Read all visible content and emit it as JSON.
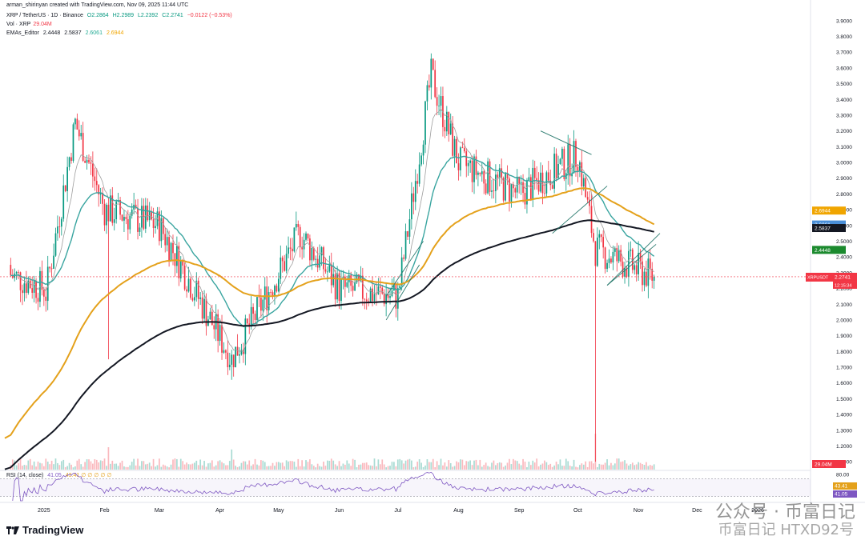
{
  "header": {
    "byline": "arman_shirinyan created with TradingView.com, Nov 09, 2025 11:44 UTC",
    "symbol": "XRP / TetherUS · 1D · Binance",
    "o": "O2.2864",
    "h": "H2.2989",
    "l": "L2.2392",
    "c": "C2.2741",
    "chg": "−0.0122 (−0.53%)",
    "vol_label": "Vol · XRP",
    "vol_value": "29.04M",
    "ema_label": "EMAs_Editor",
    "ema1": "2.4448",
    "ema2": "2.5837",
    "ema3": "2.6061",
    "ema4": "2.6944",
    "rsi_label": "RSI (14, close)",
    "rsi_value": "41.05",
    "rsi_extra": "43.41 ∅ ∅ ∅ ∅ ∅"
  },
  "chart_data": {
    "type": "candlestick",
    "symbol": "XRPUSDT",
    "interval": "1D",
    "y_ticks": [
      "3.9000",
      "3.8000",
      "3.7000",
      "3.6000",
      "3.5000",
      "3.4000",
      "3.3000",
      "3.2000",
      "3.1000",
      "3.0000",
      "2.9000",
      "2.8000",
      "2.7000",
      "2.6000",
      "2.5000",
      "2.4000",
      "2.3000",
      "2.2000",
      "2.1000",
      "2.0000",
      "1.9000",
      "1.8000",
      "1.7000",
      "1.6000",
      "1.5000",
      "1.4000",
      "1.3000",
      "1.2000",
      "1.1000"
    ],
    "ylim": [
      1.05,
      3.95
    ],
    "x_labels": [
      "2025",
      "Feb",
      "Mar",
      "Apr",
      "May",
      "Jun",
      "Jul",
      "Aug",
      "Sep",
      "Oct",
      "Nov",
      "Dec",
      "2026"
    ],
    "last_price": 2.2741,
    "price_badge": "XRPUSDT",
    "price_badge_value": "2.2741",
    "countdown": "12:15:34",
    "ema_badges": [
      {
        "value": "2.6944",
        "color": "#f0a500"
      },
      {
        "value": "2.6061",
        "color": "#4a8fd8"
      },
      {
        "value": "2.5837",
        "color": "#131722"
      },
      {
        "value": "2.4448",
        "color": "#1b8a2e"
      }
    ],
    "volume_badge": "29.04M",
    "rsi_ticks": [
      "80.00",
      "40.00"
    ],
    "rsi_badges": [
      "43.41",
      "41.05"
    ],
    "monthly_closes": [
      {
        "date": "2025-01-01",
        "close": 2.1
      },
      {
        "date": "2025-01-17",
        "close": 3.25
      },
      {
        "date": "2025-02-01",
        "close": 2.7
      },
      {
        "date": "2025-03-01",
        "close": 2.6
      },
      {
        "date": "2025-04-07",
        "close": 1.75
      },
      {
        "date": "2025-05-12",
        "close": 2.55
      },
      {
        "date": "2025-06-01",
        "close": 2.2
      },
      {
        "date": "2025-07-01",
        "close": 2.15
      },
      {
        "date": "2025-07-18",
        "close": 3.55
      },
      {
        "date": "2025-08-01",
        "close": 3.0
      },
      {
        "date": "2025-09-01",
        "close": 2.8
      },
      {
        "date": "2025-10-01",
        "close": 3.05
      },
      {
        "date": "2025-10-10",
        "close": 2.45
      },
      {
        "date": "2025-11-09",
        "close": 2.27
      }
    ],
    "colors": {
      "up": "#089981",
      "down": "#f23645",
      "ema_fast": "#9e9e9e",
      "ema_mid": "#3aa5a0",
      "ema_slow": "#e4a11b",
      "ema_200": "#131722",
      "rsi": "#7e57c2"
    }
  },
  "watermark": {
    "line1": "公众号 · 币富日记",
    "line2": "币富日记 HTXD92号"
  },
  "brand": "TradingView"
}
